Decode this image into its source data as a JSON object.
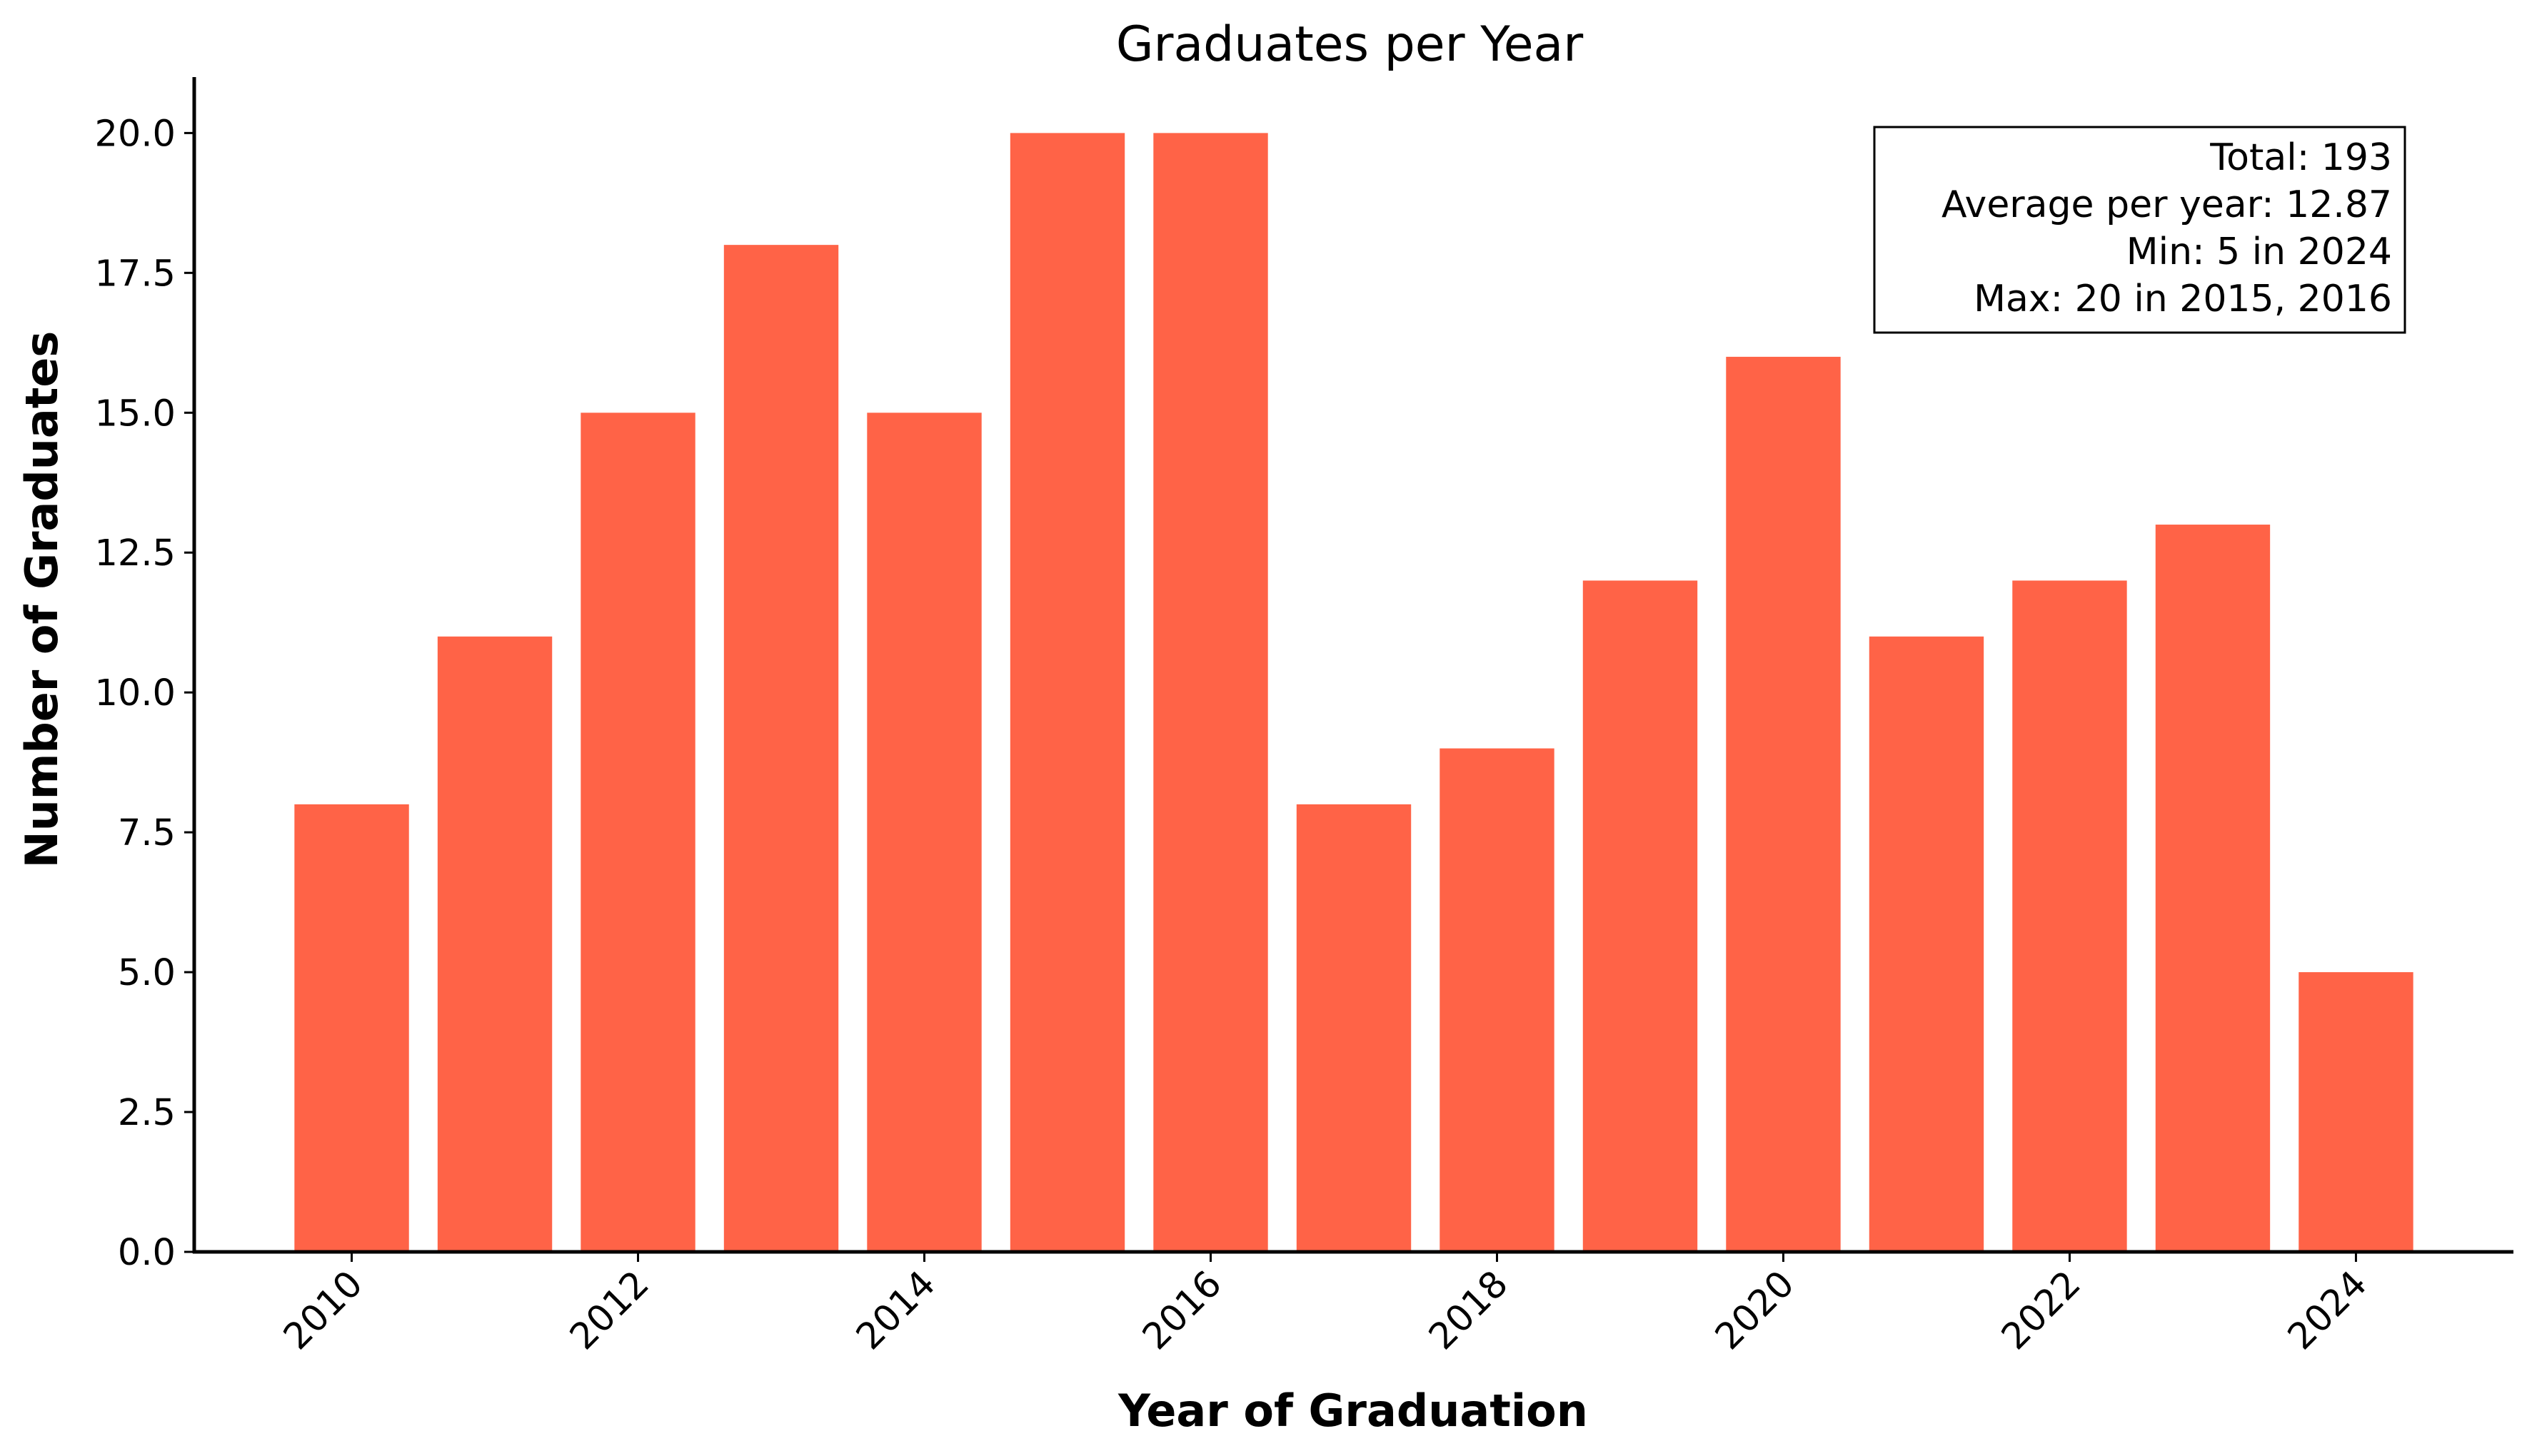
{
  "chart_data": {
    "type": "bar",
    "title": "Graduates per Year",
    "xlabel": "Year of Graduation",
    "ylabel": "Number of Graduates",
    "x": [
      2010,
      2011,
      2012,
      2013,
      2014,
      2015,
      2016,
      2017,
      2018,
      2019,
      2020,
      2021,
      2022,
      2023,
      2024
    ],
    "values": [
      8,
      11,
      15,
      18,
      15,
      20,
      20,
      8,
      9,
      12,
      16,
      11,
      12,
      13,
      5
    ],
    "xticks": [
      "2010",
      "2012",
      "2014",
      "2016",
      "2018",
      "2020",
      "2022",
      "2024"
    ],
    "yticks": [
      "0.0",
      "2.5",
      "5.0",
      "7.5",
      "10.0",
      "12.5",
      "15.0",
      "17.5",
      "20.0"
    ],
    "ylim": [
      0,
      21
    ],
    "xlim": [
      2008.9,
      2025.1
    ],
    "bar_color": "#ff6347",
    "grid": false,
    "stats_box": {
      "lines": [
        "Total: 193",
        "Average per year: 12.87",
        "Min: 5 in 2024",
        "Max: 20 in 2015, 2016"
      ],
      "placement": "top-right"
    }
  }
}
